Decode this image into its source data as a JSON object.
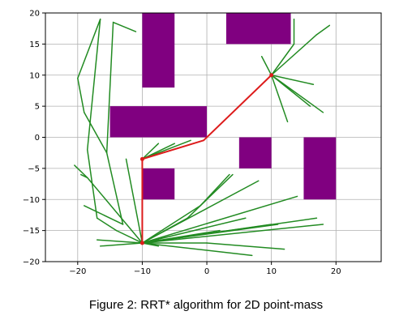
{
  "caption": "Figure 2: RRT* algorithm for 2D point-mass",
  "chart_data": {
    "type": "line",
    "xlim": [
      -25,
      27
    ],
    "ylim": [
      -20,
      20
    ],
    "x_ticks": [
      -20,
      -10,
      0,
      10,
      20
    ],
    "y_ticks": [
      20,
      15,
      10,
      5,
      0,
      -5,
      -10,
      -15,
      -20
    ],
    "x_tick_labels": [
      "−20",
      "−10",
      "0",
      "10",
      "20"
    ],
    "y_tick_labels": [
      "20",
      "15",
      "10",
      "5",
      "0",
      "−5",
      "−10",
      "−15",
      "−20"
    ],
    "grid": true,
    "obstacle_color": "#800080",
    "tree_color": "#228b22",
    "path_color": "#dd1c1c",
    "node_color": "#dd1c1c",
    "obstacles": [
      {
        "x0": -10,
        "x1": -5,
        "y0": 8,
        "y1": 20
      },
      {
        "x0": 3,
        "x1": 13,
        "y0": 15,
        "y1": 20
      },
      {
        "x0": -15,
        "x1": 0,
        "y0": 0,
        "y1": 5
      },
      {
        "x0": -10,
        "x1": -5,
        "y0": -10,
        "y1": -5
      },
      {
        "x0": 5,
        "x1": 10,
        "y0": -5,
        "y1": 0
      },
      {
        "x0": 15,
        "x1": 20,
        "y0": -10,
        "y1": 0
      }
    ],
    "tree_edges": [
      [
        [
          -10,
          -17
        ],
        [
          -14,
          -15
        ]
      ],
      [
        [
          -14,
          -15
        ],
        [
          -17,
          -13
        ]
      ],
      [
        [
          -17,
          -13
        ],
        [
          -18.5,
          -2
        ]
      ],
      [
        [
          -18.5,
          -2
        ],
        [
          -16.5,
          19
        ]
      ],
      [
        [
          -16.5,
          19
        ],
        [
          -20,
          9.5
        ]
      ],
      [
        [
          -20,
          9.5
        ],
        [
          -19,
          4
        ]
      ],
      [
        [
          -19,
          4
        ],
        [
          -15.5,
          -2.5
        ]
      ],
      [
        [
          -15.5,
          -2.5
        ],
        [
          -14.5,
          18.5
        ]
      ],
      [
        [
          -14.5,
          18.5
        ],
        [
          -11,
          17
        ]
      ],
      [
        [
          -15.5,
          -2.5
        ],
        [
          -13,
          -14
        ]
      ],
      [
        [
          -10,
          -17
        ],
        [
          -18.5,
          -6.5
        ]
      ],
      [
        [
          -18.5,
          -6.5
        ],
        [
          -20.5,
          -4.5
        ]
      ],
      [
        [
          -18.5,
          -6.5
        ],
        [
          -19.5,
          -6
        ]
      ],
      [
        [
          -13,
          -14
        ],
        [
          -19,
          -11
        ]
      ],
      [
        [
          -10,
          -17
        ],
        [
          -12.5,
          -3.5
        ]
      ],
      [
        [
          -10,
          -17
        ],
        [
          -17,
          -16.5
        ]
      ],
      [
        [
          -10,
          -17
        ],
        [
          -16.5,
          -17.5
        ]
      ],
      [
        [
          -10,
          -17
        ],
        [
          -7.5,
          -16.5
        ]
      ],
      [
        [
          -10,
          -17
        ],
        [
          -7.5,
          -17.5
        ]
      ],
      [
        [
          -10,
          -17
        ],
        [
          -3,
          -13
        ]
      ],
      [
        [
          -3,
          -13
        ],
        [
          4,
          -6
        ]
      ],
      [
        [
          -10,
          -17
        ],
        [
          -1,
          -11
        ]
      ],
      [
        [
          -1,
          -11
        ],
        [
          3.5,
          -6
        ]
      ],
      [
        [
          -10,
          -17
        ],
        [
          8,
          -7
        ]
      ],
      [
        [
          -10,
          -17
        ],
        [
          14,
          -9.5
        ]
      ],
      [
        [
          -10,
          -17
        ],
        [
          6,
          -13
        ]
      ],
      [
        [
          -10,
          -17
        ],
        [
          17,
          -13
        ]
      ],
      [
        [
          -10,
          -17
        ],
        [
          18,
          -14
        ]
      ],
      [
        [
          -10,
          -17
        ],
        [
          11,
          -14
        ]
      ],
      [
        [
          -10,
          -17
        ],
        [
          7,
          -19
        ]
      ],
      [
        [
          -10,
          -17
        ],
        [
          0,
          -17
        ]
      ],
      [
        [
          0,
          -17
        ],
        [
          12,
          -18
        ]
      ],
      [
        [
          -10,
          -17
        ],
        [
          2,
          -15
        ]
      ],
      [
        [
          -10,
          -17
        ],
        [
          10,
          -14
        ]
      ],
      [
        [
          -10,
          -3.5
        ],
        [
          -7.5,
          -1
        ]
      ],
      [
        [
          -10,
          -3.5
        ],
        [
          -2.5,
          -0.5
        ]
      ],
      [
        [
          -10,
          -3.5
        ],
        [
          -5,
          -1
        ]
      ],
      [
        [
          10,
          10
        ],
        [
          8.5,
          13
        ]
      ],
      [
        [
          10,
          10
        ],
        [
          13.5,
          15
        ]
      ],
      [
        [
          13.5,
          15
        ],
        [
          13.5,
          19
        ]
      ],
      [
        [
          10,
          10
        ],
        [
          17,
          16.5
        ]
      ],
      [
        [
          17,
          16.5
        ],
        [
          19,
          18
        ]
      ],
      [
        [
          10,
          10
        ],
        [
          16.5,
          8.5
        ]
      ],
      [
        [
          10,
          10
        ],
        [
          16,
          5
        ]
      ],
      [
        [
          10,
          10
        ],
        [
          18,
          4
        ]
      ],
      [
        [
          10,
          10
        ],
        [
          12.5,
          2.5
        ]
      ]
    ],
    "solution_path": [
      [
        -10,
        -17
      ],
      [
        -10,
        -3.5
      ],
      [
        -0.5,
        -0.5
      ],
      [
        10,
        10
      ]
    ],
    "nodes": [
      [
        -10,
        -17
      ],
      [
        -10,
        -3.5
      ],
      [
        10,
        10
      ]
    ]
  }
}
